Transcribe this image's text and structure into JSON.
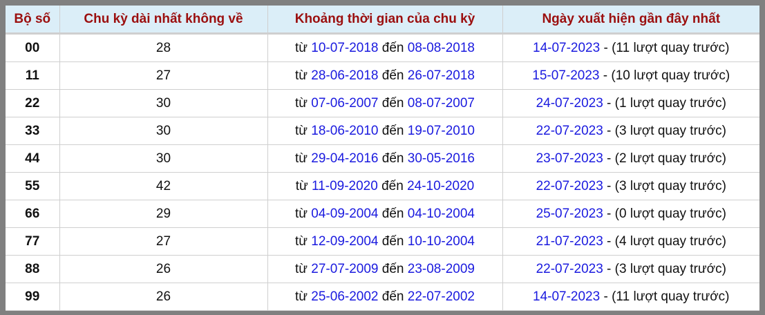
{
  "headers": [
    "Bộ số",
    "Chu kỳ dài nhất không về",
    "Khoảng thời gian của chu kỳ",
    "Ngày xuất hiện gần đây nhất"
  ],
  "labels": {
    "from": "từ",
    "to": "đến",
    "sep": " - ",
    "turns_suffix": "lượt quay trước"
  },
  "colors": {
    "header_text": "#9b0f0f",
    "header_bg": "#dbeef8",
    "link": "#1a1adf"
  },
  "rows": [
    {
      "num": "00",
      "cycle": "28",
      "start": "10-07-2018",
      "end": "08-08-2018",
      "last": "14-07-2023",
      "turns": "11"
    },
    {
      "num": "11",
      "cycle": "27",
      "start": "28-06-2018",
      "end": "26-07-2018",
      "last": "15-07-2023",
      "turns": "10"
    },
    {
      "num": "22",
      "cycle": "30",
      "start": "07-06-2007",
      "end": "08-07-2007",
      "last": "24-07-2023",
      "turns": "1"
    },
    {
      "num": "33",
      "cycle": "30",
      "start": "18-06-2010",
      "end": "19-07-2010",
      "last": "22-07-2023",
      "turns": "3"
    },
    {
      "num": "44",
      "cycle": "30",
      "start": "29-04-2016",
      "end": "30-05-2016",
      "last": "23-07-2023",
      "turns": "2"
    },
    {
      "num": "55",
      "cycle": "42",
      "start": "11-09-2020",
      "end": "24-10-2020",
      "last": "22-07-2023",
      "turns": "3"
    },
    {
      "num": "66",
      "cycle": "29",
      "start": "04-09-2004",
      "end": "04-10-2004",
      "last": "25-07-2023",
      "turns": "0"
    },
    {
      "num": "77",
      "cycle": "27",
      "start": "12-09-2004",
      "end": "10-10-2004",
      "last": "21-07-2023",
      "turns": "4"
    },
    {
      "num": "88",
      "cycle": "26",
      "start": "27-07-2009",
      "end": "23-08-2009",
      "last": "22-07-2023",
      "turns": "3"
    },
    {
      "num": "99",
      "cycle": "26",
      "start": "25-06-2002",
      "end": "22-07-2002",
      "last": "14-07-2023",
      "turns": "11"
    }
  ]
}
